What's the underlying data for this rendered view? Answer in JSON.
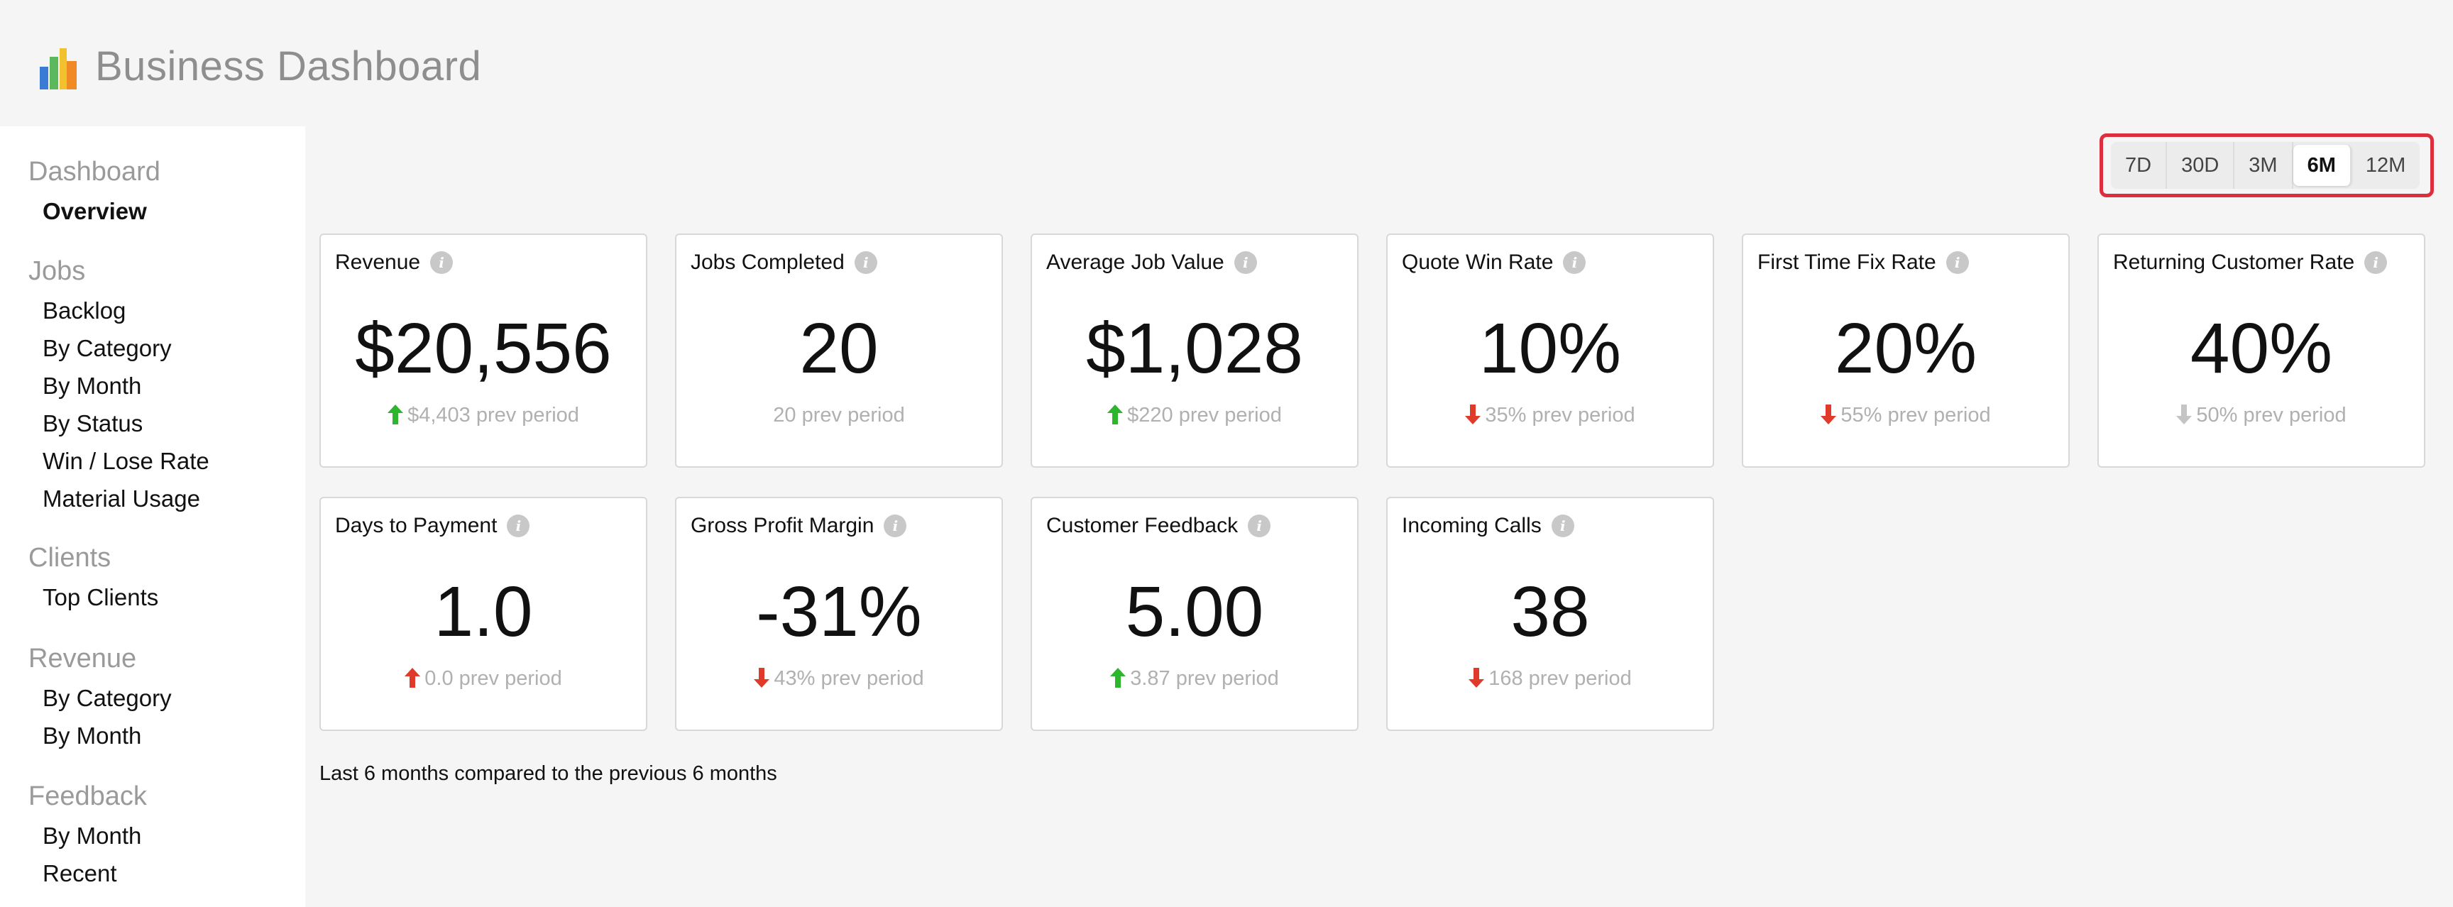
{
  "app": {
    "title": "Business Dashboard"
  },
  "sidebar": {
    "groups": [
      {
        "heading": "Dashboard",
        "items": [
          "Overview"
        ]
      },
      {
        "heading": "Jobs",
        "items": [
          "Backlog",
          "By Category",
          "By Month",
          "By Status",
          "Win / Lose Rate",
          "Material Usage"
        ]
      },
      {
        "heading": "Clients",
        "items": [
          "Top Clients"
        ]
      },
      {
        "heading": "Revenue",
        "items": [
          "By Category",
          "By Month"
        ]
      },
      {
        "heading": "Feedback",
        "items": [
          "By Month",
          "Recent"
        ]
      }
    ],
    "active_item": "Overview"
  },
  "range": {
    "options": [
      "7D",
      "30D",
      "3M",
      "6M",
      "12M"
    ],
    "selected": "6M"
  },
  "cards": [
    {
      "title": "Revenue",
      "value": "$20,556",
      "prev": "$4,403 prev period",
      "trend": "up-good"
    },
    {
      "title": "Jobs Completed",
      "value": "20",
      "prev": "20 prev period",
      "trend": "none"
    },
    {
      "title": "Average Job Value",
      "value": "$1,028",
      "prev": "$220 prev period",
      "trend": "up-good"
    },
    {
      "title": "Quote Win Rate",
      "value": "10%",
      "prev": "35% prev period",
      "trend": "down-bad"
    },
    {
      "title": "First Time Fix Rate",
      "value": "20%",
      "prev": "55% prev period",
      "trend": "down-bad"
    },
    {
      "title": "Returning Customer Rate",
      "value": "40%",
      "prev": "50% prev period",
      "trend": "down-neutral"
    },
    {
      "title": "Days to Payment",
      "value": "1.0",
      "prev": "0.0 prev period",
      "trend": "up-bad"
    },
    {
      "title": "Gross Profit Margin",
      "value": "-31%",
      "prev": "43% prev period",
      "trend": "down-bad"
    },
    {
      "title": "Customer Feedback",
      "value": "5.00",
      "prev": "3.87 prev period",
      "trend": "up-good"
    },
    {
      "title": "Incoming Calls",
      "value": "38",
      "prev": "168 prev period",
      "trend": "down-bad"
    }
  ],
  "footer": {
    "note": "Last 6 months compared to the previous 6 months"
  },
  "colors": {
    "up_good": "#2db52d",
    "down_bad": "#e03a2a",
    "neutral": "#c4c4c4",
    "highlight_border": "#dc2e3c",
    "logo_blue": "#3a7bd5",
    "logo_green": "#5cb85c",
    "logo_yellow": "#f2c12e",
    "logo_orange": "#f08a24"
  },
  "icons": {
    "info": "info-icon",
    "arrow_up": "arrow-up-icon",
    "arrow_down": "arrow-down-icon",
    "logo": "bar-chart-logo-icon"
  }
}
